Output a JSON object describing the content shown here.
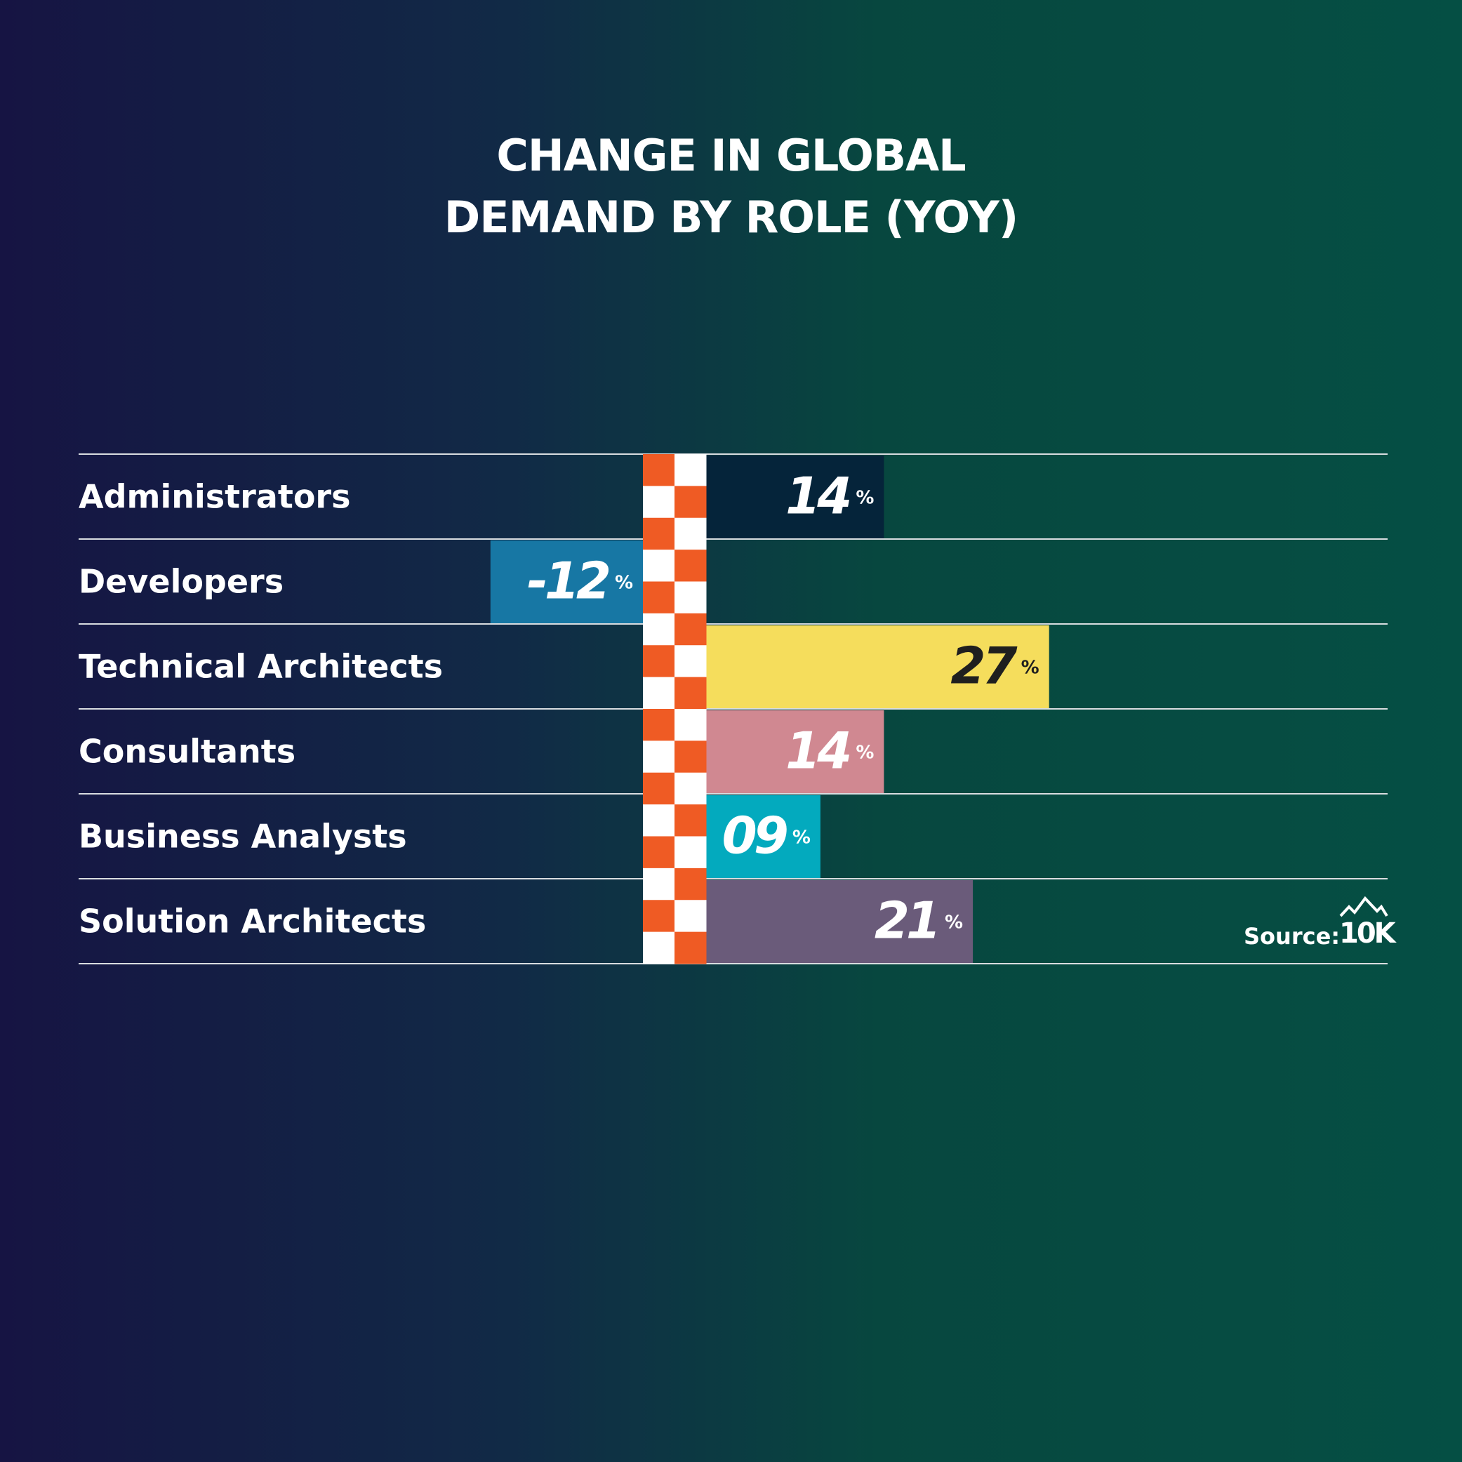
{
  "chart_data": {
    "type": "bar",
    "orientation": "horizontal",
    "title": [
      "CHANGE IN GLOBAL",
      "DEMAND BY ROLE (YOY)"
    ],
    "categories": [
      "Administrators",
      "Developers",
      "Technical Architects",
      "Consultants",
      "Business Analysts",
      "Solution Architects"
    ],
    "values": [
      14,
      -12,
      27,
      14,
      9,
      21
    ],
    "value_labels": [
      "14",
      "-12",
      "27",
      "14",
      "09",
      "21"
    ],
    "unit": "%",
    "bar_colors": [
      "#05243a",
      "#1777a4",
      "#f5dd5c",
      "#d08891",
      "#03aabe",
      "#6a5b7a"
    ],
    "label_colors": [
      "#ffffff",
      "#ffffff",
      "#1f1f1f",
      "#ffffff",
      "#ffffff",
      "#ffffff"
    ],
    "grid": false,
    "legend": "none"
  },
  "source": {
    "label": "Source:",
    "logo_text": "10K"
  },
  "colors": {
    "checker_orange": "#ef5b24",
    "checker_white": "#ffffff",
    "divider": "#d9dde0",
    "text": "#ffffff"
  }
}
